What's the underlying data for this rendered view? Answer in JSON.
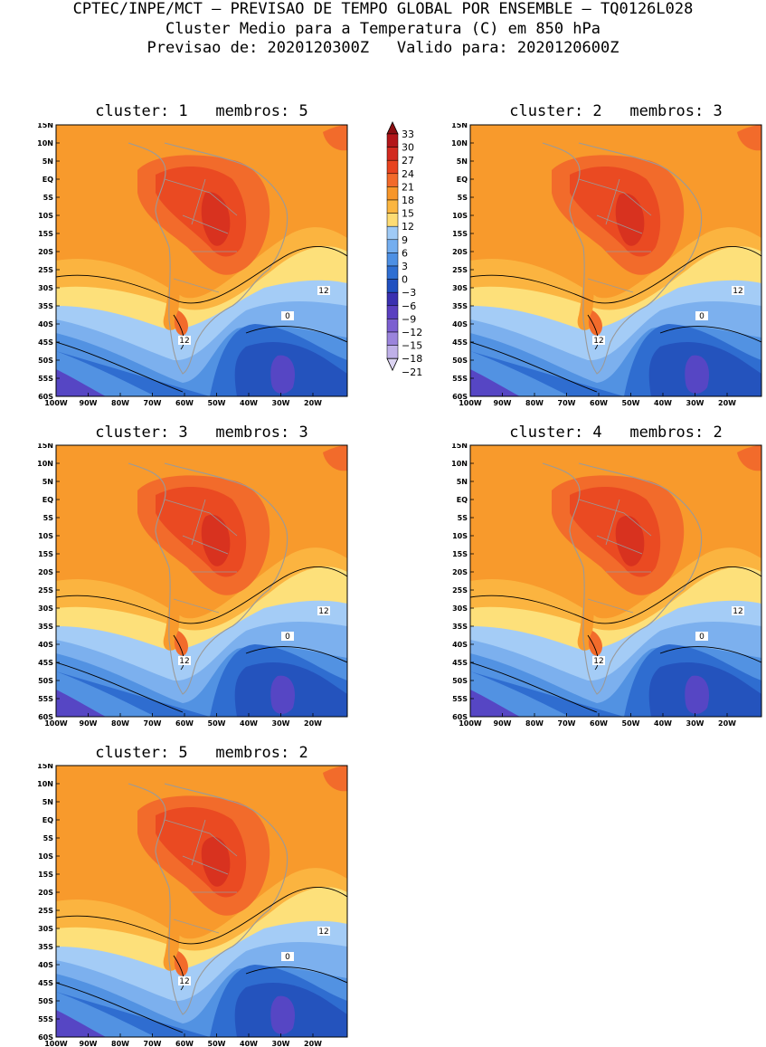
{
  "header": {
    "line1": "CPTEC/INPE/MCT – PREVISAO DE TEMPO GLOBAL POR ENSEMBLE – TQ0126L028",
    "line2": "Cluster Medio para a Temperatura (C) em 850 hPa",
    "line3": "Previsao de: 2020120300Z   Valido para: 2020120600Z"
  },
  "axis": {
    "lat_labels": [
      "15N",
      "10N",
      "5N",
      "EQ",
      "5S",
      "10S",
      "15S",
      "20S",
      "25S",
      "30S",
      "35S",
      "40S",
      "45S",
      "50S",
      "55S",
      "60S"
    ],
    "lon_labels": [
      "100W",
      "90W",
      "80W",
      "70W",
      "60W",
      "50W",
      "40W",
      "30W",
      "20W"
    ]
  },
  "colorbar": {
    "labels": [
      "33",
      "30",
      "27",
      "24",
      "21",
      "18",
      "15",
      "12",
      "9",
      "6",
      "3",
      "0",
      "−3",
      "−6",
      "−9",
      "−12",
      "−15",
      "−18",
      "−21"
    ],
    "colors": [
      "#8b0e12",
      "#b3161a",
      "#d22a20",
      "#e8431f",
      "#f26a2a",
      "#f7962a",
      "#fbb640",
      "#fddc74",
      "#9fcaf6",
      "#74aeef",
      "#4d90e4",
      "#2f6fd2",
      "#2050c0",
      "#3a30b0",
      "#5a3fc0",
      "#7c5fd0",
      "#9b84dc",
      "#bfb0e8",
      "#dcd4f2"
    ]
  },
  "clusters": [
    {
      "label": "cluster: 1   membros: 5"
    },
    {
      "label": "cluster: 2   membros: 3"
    },
    {
      "label": "cluster: 3   membros: 3"
    },
    {
      "label": "cluster: 4   membros: 2"
    },
    {
      "label": "cluster: 5   membros: 2"
    }
  ],
  "contour_labels": {
    "twelve": "12",
    "zero": "0"
  }
}
